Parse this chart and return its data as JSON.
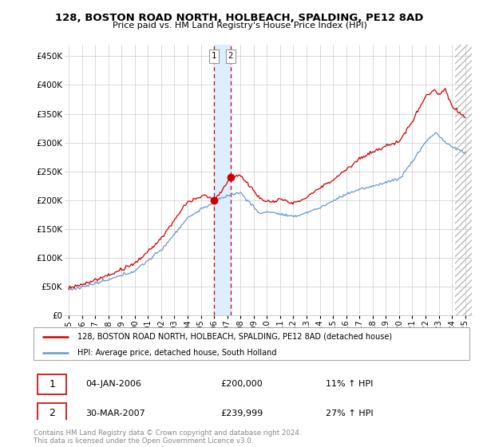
{
  "title": "128, BOSTON ROAD NORTH, HOLBEACH, SPALDING, PE12 8AD",
  "subtitle": "Price paid vs. HM Land Registry's House Price Index (HPI)",
  "ylabel_ticks": [
    "£0",
    "£50K",
    "£100K",
    "£150K",
    "£200K",
    "£250K",
    "£300K",
    "£350K",
    "£400K",
    "£450K"
  ],
  "ytick_values": [
    0,
    50000,
    100000,
    150000,
    200000,
    250000,
    300000,
    350000,
    400000,
    450000
  ],
  "ylim": [
    0,
    470000
  ],
  "xlim_start": 1994.7,
  "xlim_end": 2025.5,
  "legend_line1": "128, BOSTON ROAD NORTH, HOLBEACH, SPALDING, PE12 8AD (detached house)",
  "legend_line2": "HPI: Average price, detached house, South Holland",
  "sale1_date": "04-JAN-2006",
  "sale1_price": "£200,000",
  "sale1_hpi": "11% ↑ HPI",
  "sale2_date": "30-MAR-2007",
  "sale2_price": "£239,999",
  "sale2_hpi": "27% ↑ HPI",
  "footer": "Contains HM Land Registry data © Crown copyright and database right 2024.\nThis data is licensed under the Open Government Licence v3.0.",
  "sale1_x": 2006.0,
  "sale1_y": 200000,
  "sale2_x": 2007.25,
  "sale2_y": 239999,
  "red_color": "#cc0000",
  "blue_color": "#6699cc",
  "highlight_color": "#ddeeff",
  "grid_color": "#cccccc",
  "hatch_start": 2024.25
}
